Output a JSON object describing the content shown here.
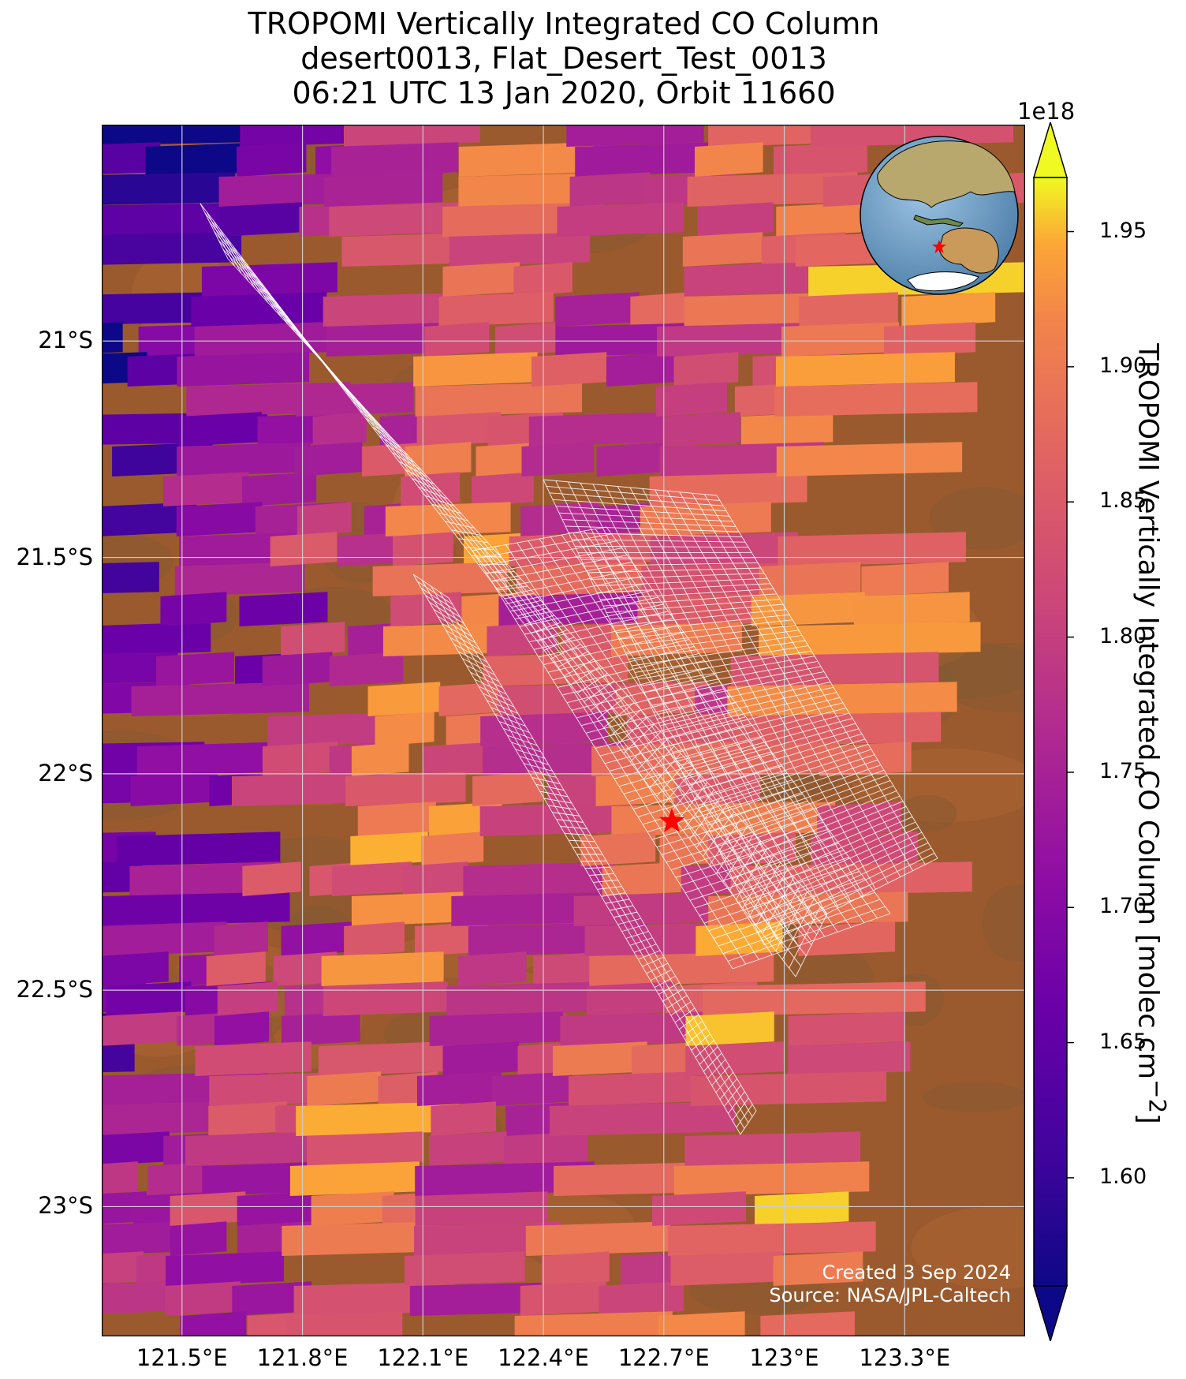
{
  "title": {
    "line1": "TROPOMI Vertically Integrated CO Column",
    "line2": "desert0013, Flat_Desert_Test_0013",
    "line3": "06:21 UTC 13 Jan 2020, Orbit 11660"
  },
  "map": {
    "lon_range": [
      121.3,
      123.6
    ],
    "lat_range": [
      -23.3,
      -20.5
    ],
    "lon_ticks": [
      {
        "value": 121.5,
        "label": "121.5°E"
      },
      {
        "value": 121.8,
        "label": "121.8°E"
      },
      {
        "value": 122.1,
        "label": "122.1°E"
      },
      {
        "value": 122.4,
        "label": "122.4°E"
      },
      {
        "value": 122.7,
        "label": "122.7°E"
      },
      {
        "value": 123.0,
        "label": "123°E"
      },
      {
        "value": 123.3,
        "label": "123.3°E"
      }
    ],
    "lat_ticks": [
      {
        "value": -21.0,
        "label": "21°S"
      },
      {
        "value": -21.5,
        "label": "21.5°S"
      },
      {
        "value": -22.0,
        "label": "22°S"
      },
      {
        "value": -22.5,
        "label": "22.5°S"
      },
      {
        "value": -23.0,
        "label": "23°S"
      }
    ],
    "target_marker": {
      "lon": 122.72,
      "lat": -22.11,
      "color": "#ff0000"
    },
    "inset_globe": {
      "center_lon": 122.72,
      "center_lat": -22.11,
      "ocean_color": "#5f8fbf"
    },
    "credits": {
      "created": "Created 3 Sep 2024",
      "source": "Source: NASA/JPL-Caltech"
    }
  },
  "colorbar": {
    "colormap": "plasma",
    "exponent_label": "1e18",
    "label": "TROPOMI Vertically Integrated CO Column [molec cm",
    "label_superscript": "−2",
    "label_end": "]",
    "range": [
      1.56,
      1.97
    ],
    "ticks": [
      "1.60",
      "1.65",
      "1.70",
      "1.75",
      "1.80",
      "1.85",
      "1.90",
      "1.95"
    ],
    "extend": "both"
  }
}
